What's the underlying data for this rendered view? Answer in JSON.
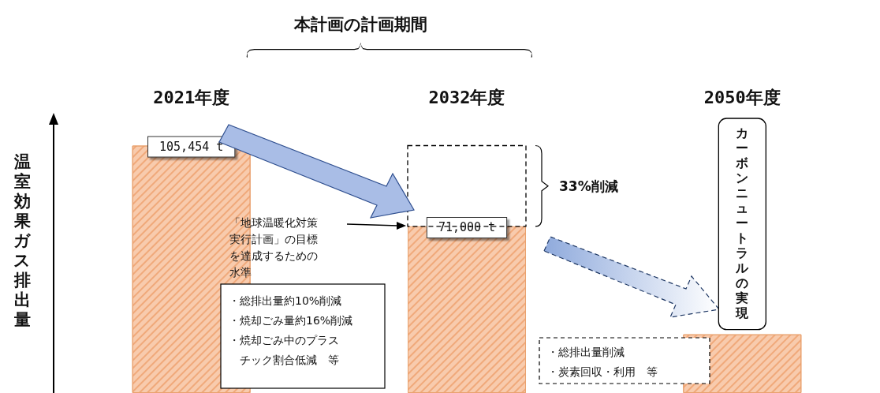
{
  "chart_data": {
    "type": "bar",
    "title": "本計画の計画期間",
    "ylabel": "温室効果ガス排出量",
    "categories": [
      "2021年度",
      "2032年度",
      "2050年度"
    ],
    "values": [
      105454,
      71000,
      25000
    ],
    "value_labels": [
      "105,454 t",
      "71,000 t",
      null
    ],
    "color": "#f8cbad",
    "annotations": [
      "「地球温暖化対策実行計画」の目標を達成するための水準",
      "33%削減",
      "・総排出量約10%削減",
      "・焼却ごみ量約16%削減",
      "・焼却ごみ中のプラスチック割合低減　等",
      "・総排出量削減",
      "・炭素回収・利用　等",
      "カーボンニュートラルの実現"
    ],
    "grid": false
  }
}
